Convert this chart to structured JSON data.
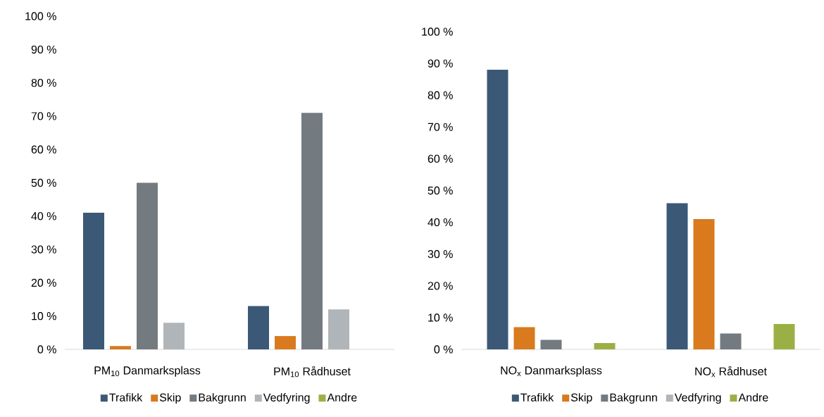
{
  "chart_data": [
    {
      "type": "bar",
      "categories": [
        "PM$_{10}$ Danmarksplass",
        "PM$_{10}$ Rådhuset"
      ],
      "series": [
        {
          "name": "Trafikk",
          "color": "#3b5876",
          "values": [
            41,
            13
          ]
        },
        {
          "name": "Skip",
          "color": "#d97a1e",
          "values": [
            1,
            4
          ]
        },
        {
          "name": "Bakgrunn",
          "color": "#737a80",
          "values": [
            50,
            71
          ]
        },
        {
          "name": "Vedfyring",
          "color": "#b0b5ba",
          "values": [
            8,
            12
          ]
        },
        {
          "name": "Andre",
          "color": "#9bb044",
          "values": [
            null,
            null
          ]
        }
      ],
      "ylim": [
        0,
        100
      ],
      "yticks": [
        {
          "value": 0,
          "label": "0 %"
        },
        {
          "value": 10,
          "label": "10 %"
        },
        {
          "value": 20,
          "label": "20 %"
        },
        {
          "value": 30,
          "label": "30 %"
        },
        {
          "value": 40,
          "label": "40 %"
        },
        {
          "value": 50,
          "label": "50 %"
        },
        {
          "value": 60,
          "label": "60 %"
        },
        {
          "value": 70,
          "label": "70 %"
        },
        {
          "value": 80,
          "label": "80 %"
        },
        {
          "value": 90,
          "label": "90 %"
        },
        {
          "value": 100,
          "label": "100 %"
        }
      ],
      "grid": false,
      "legend": "bottom"
    },
    {
      "type": "bar",
      "categories": [
        "NO$_{x}$ Danmarksplass",
        "NO$_{x}$ Rådhuset"
      ],
      "series": [
        {
          "name": "Trafikk",
          "color": "#3b5876",
          "values": [
            88,
            46
          ]
        },
        {
          "name": "Skip",
          "color": "#d97a1e",
          "values": [
            7,
            41
          ]
        },
        {
          "name": "Bakgrunn",
          "color": "#737a80",
          "values": [
            3,
            5
          ]
        },
        {
          "name": "Vedfyring",
          "color": "#b0b5ba",
          "values": [
            null,
            null
          ]
        },
        {
          "name": "Andre",
          "color": "#9bb044",
          "values": [
            2,
            8
          ]
        }
      ],
      "ylim": [
        0,
        100
      ],
      "yticks": [
        {
          "value": 0,
          "label": "0 %"
        },
        {
          "value": 10,
          "label": "10 %"
        },
        {
          "value": 20,
          "label": "20 %"
        },
        {
          "value": 30,
          "label": "30 %"
        },
        {
          "value": 40,
          "label": "40 %"
        },
        {
          "value": 50,
          "label": "50 %"
        },
        {
          "value": 60,
          "label": "60 %"
        },
        {
          "value": 70,
          "label": "70 %"
        },
        {
          "value": 80,
          "label": "80 %"
        },
        {
          "value": 90,
          "label": "90 %"
        },
        {
          "value": 100,
          "label": "100 %"
        }
      ],
      "grid": false,
      "legend": "bottom"
    }
  ]
}
